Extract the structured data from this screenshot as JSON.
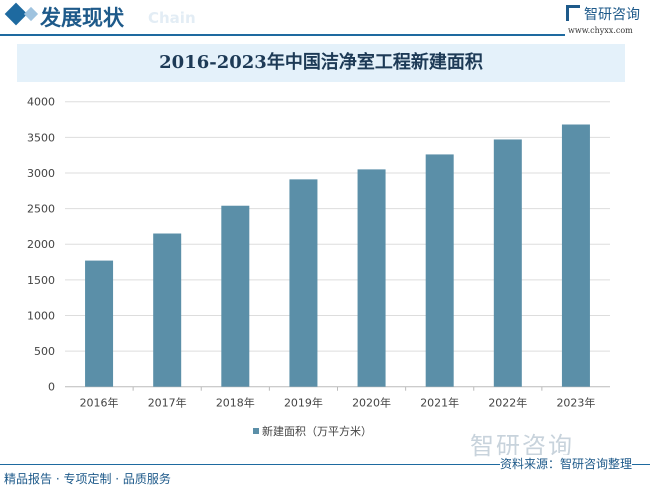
{
  "header": {
    "title": "发展现状",
    "subtitle_en": "Chain",
    "logo_text": "智研咨询",
    "url": "www.chyxx.com"
  },
  "footer": {
    "slogan": "精品报告 · 专项定制 · 品质服务",
    "source": "资料来源：智研咨询整理",
    "watermark": "智研咨询"
  },
  "colors": {
    "bar": "#5b8fa8",
    "accent": "#1e6aa0"
  },
  "chart_data": {
    "type": "bar",
    "title": "2016-2023年中国洁净室工程新建面积",
    "categories": [
      "2016年",
      "2017年",
      "2018年",
      "2019年",
      "2020年",
      "2021年",
      "2022年",
      "2023年"
    ],
    "series": [
      {
        "name": "新建面积（万平方米）",
        "values": [
          1770,
          2150,
          2540,
          2910,
          3050,
          3260,
          3470,
          3680
        ]
      }
    ],
    "ylim": [
      0,
      4000
    ],
    "yticks": [
      "0",
      "500",
      "1000",
      "1500",
      "2000",
      "2500",
      "3000",
      "3500",
      "4000"
    ],
    "grid": true,
    "legend": "bottom"
  }
}
